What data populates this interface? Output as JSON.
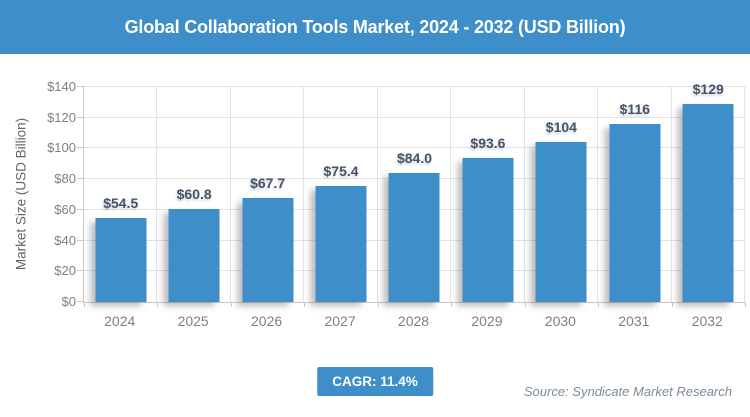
{
  "header": {
    "title": "Global Collaboration Tools Market, 2024 - 2032 (USD Billion)"
  },
  "chart_data": {
    "type": "bar",
    "title": "Global Collaboration Tools Market, 2024 - 2032 (USD Billion)",
    "categories": [
      "2024",
      "2025",
      "2026",
      "2027",
      "2028",
      "2029",
      "2030",
      "2031",
      "2032"
    ],
    "values": [
      54.5,
      60.8,
      67.7,
      75.4,
      84.0,
      93.6,
      104,
      116,
      129
    ],
    "bar_labels": [
      "$54.5",
      "$60.8",
      "$67.7",
      "$75.4",
      "$84.0",
      "$93.6",
      "$104",
      "$116",
      "$129"
    ],
    "xlabel": "",
    "ylabel": "Market Size (USD Billion)",
    "ylim": [
      0,
      140
    ],
    "y_ticks": [
      "$0",
      "$20",
      "$40",
      "$60",
      "$80",
      "$100",
      "$120",
      "$140"
    ],
    "grid": true,
    "legend": false,
    "bar_color": "#3D8EC9"
  },
  "footer": {
    "cagr_label": "CAGR: 11.4%",
    "source": "Source: Syndicate Market Research"
  },
  "colors": {
    "accent_blue": "#3D8EC9",
    "value_label": "#44546A",
    "axis_text": "#808080",
    "gridline": "#e2e2e2",
    "source_text": "#7d8b98"
  }
}
